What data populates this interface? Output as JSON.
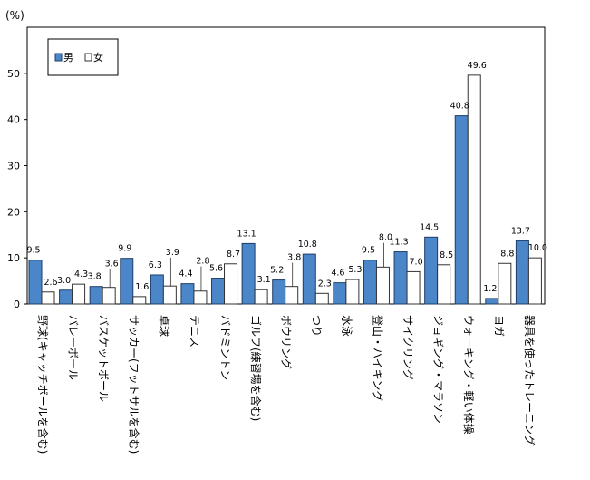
{
  "chart_data": {
    "type": "bar",
    "unit_label": "(%)",
    "ylim": [
      0,
      60
    ],
    "yticks": [
      0,
      10,
      20,
      30,
      40,
      50
    ],
    "grid": false,
    "legend_position": "top-left",
    "categories": [
      "野球(キャッチボールを含む)",
      "バレーボール",
      "バスケットボール",
      "サッカー(フットサルを含む)",
      "卓球",
      "テニス",
      "バドミントン",
      "ゴルフ(練習場を含む)",
      "ボウリング",
      "つり",
      "水泳",
      "登山・ハイキング",
      "サイクリング",
      "ジョギング・マラソン",
      "ウォーキング・軽い体操",
      "ヨガ",
      "器具を使ったトレーニング"
    ],
    "series": [
      {
        "name": "男",
        "color": "#4a86c8",
        "values": [
          9.5,
          3.0,
          3.8,
          9.9,
          6.3,
          4.4,
          5.6,
          13.1,
          5.2,
          10.8,
          4.6,
          9.5,
          11.3,
          14.5,
          40.8,
          1.2,
          13.7
        ]
      },
      {
        "name": "女",
        "color": "#ffffff",
        "values": [
          2.6,
          4.3,
          3.6,
          1.6,
          3.9,
          2.8,
          8.7,
          3.1,
          3.8,
          2.3,
          5.3,
          8.0,
          7.0,
          8.5,
          49.6,
          8.8,
          10.0
        ]
      }
    ]
  }
}
